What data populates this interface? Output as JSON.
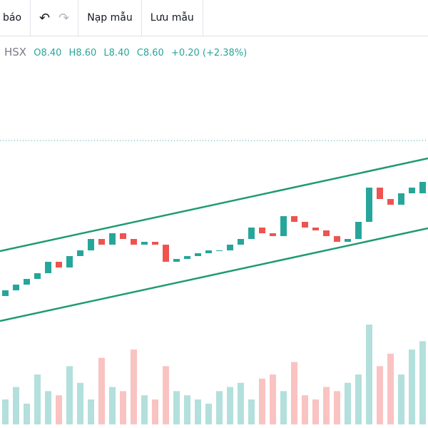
{
  "toolbar": {
    "left_label": "báo",
    "buttons": [
      "Nạp mẫu",
      "Lưu mẫu"
    ]
  },
  "legend": {
    "exchange": "HSX",
    "open": "O8.40",
    "high": "H8.60",
    "low": "L8.40",
    "close": "C8.60",
    "change": "+0.20 (+2.38%)"
  },
  "chart_data": {
    "type": "candlestick",
    "up_color": "#26a69a",
    "down_color": "#ef5350",
    "opens": [
      6.6,
      6.7,
      6.8,
      6.9,
      7.0,
      7.2,
      7.1,
      7.3,
      7.4,
      7.6,
      7.5,
      7.7,
      7.6,
      7.5,
      7.55,
      7.5,
      7.2,
      7.25,
      7.3,
      7.35,
      7.4,
      7.4,
      7.5,
      7.6,
      7.8,
      7.7,
      7.65,
      8.0,
      7.9,
      7.8,
      7.75,
      7.65,
      7.55,
      7.6,
      7.9,
      8.5,
      8.3,
      8.2,
      8.4,
      8.4
    ],
    "closes": [
      6.7,
      6.8,
      6.9,
      7.0,
      7.2,
      7.1,
      7.3,
      7.4,
      7.6,
      7.5,
      7.7,
      7.6,
      7.5,
      7.55,
      7.5,
      7.2,
      7.25,
      7.3,
      7.35,
      7.4,
      7.4,
      7.5,
      7.6,
      7.8,
      7.7,
      7.65,
      8.0,
      7.9,
      7.8,
      7.75,
      7.65,
      7.55,
      7.6,
      7.9,
      8.5,
      8.3,
      8.2,
      8.4,
      8.5,
      8.6
    ],
    "volumes": [
      30,
      45,
      25,
      60,
      40,
      35,
      70,
      50,
      30,
      80,
      45,
      40,
      90,
      35,
      30,
      70,
      40,
      35,
      30,
      25,
      40,
      45,
      50,
      30,
      55,
      60,
      40,
      75,
      35,
      30,
      45,
      40,
      50,
      60,
      120,
      70,
      85,
      60,
      90,
      100
    ]
  }
}
